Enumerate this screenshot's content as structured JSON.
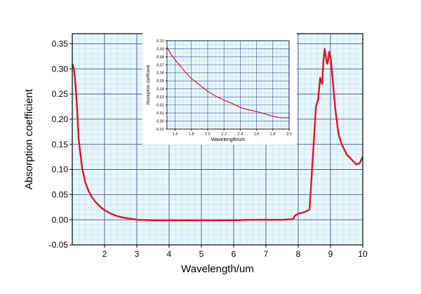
{
  "colors": {
    "background": "#e8f7fb",
    "minor_grid": "#aee0ec",
    "major_grid": "#4a4fa8",
    "curve": "#e0141c",
    "axis": "#000000"
  },
  "chart_data": [
    {
      "type": "line",
      "title": "",
      "xlabel": "Wavelength/um",
      "ylabel": "Absorption coefficient",
      "xlim": [
        1.0,
        10.0
      ],
      "ylim": [
        -0.05,
        0.37
      ],
      "grid": true,
      "x_ticks": [
        2,
        3,
        4,
        5,
        6,
        7,
        8,
        9,
        10
      ],
      "x_tick_labels": [
        "2",
        "3",
        "4",
        "5",
        "6",
        "7",
        "8",
        "9",
        "10"
      ],
      "y_ticks": [
        -0.05,
        0.0,
        0.05,
        0.1,
        0.15,
        0.2,
        0.25,
        0.3,
        0.35
      ],
      "y_tick_labels": [
        "-0.05",
        "0.00",
        "0.05",
        "0.10",
        "0.15",
        "0.20",
        "0.25",
        "0.30",
        "0.35"
      ],
      "series": [
        {
          "name": "Absorption coefficient",
          "x": [
            1.0,
            1.05,
            1.1,
            1.15,
            1.2,
            1.3,
            1.4,
            1.5,
            1.6,
            1.7,
            1.8,
            1.9,
            2.0,
            2.2,
            2.4,
            2.6,
            2.8,
            3.0,
            3.5,
            4.0,
            4.5,
            5.0,
            5.5,
            6.0,
            6.5,
            7.0,
            7.5,
            7.8,
            7.85,
            7.9,
            8.0,
            8.2,
            8.35,
            8.45,
            8.55,
            8.62,
            8.68,
            8.74,
            8.78,
            8.82,
            8.86,
            8.9,
            8.93,
            8.96,
            9.0,
            9.04,
            9.08,
            9.15,
            9.25,
            9.35,
            9.5,
            9.65,
            9.8,
            9.9,
            10.0
          ],
          "y": [
            0.31,
            0.3,
            0.27,
            0.22,
            0.16,
            0.105,
            0.075,
            0.058,
            0.046,
            0.037,
            0.03,
            0.024,
            0.019,
            0.012,
            0.007,
            0.004,
            0.002,
            0.0,
            -0.001,
            -0.001,
            -0.001,
            -0.001,
            -0.001,
            -0.001,
            0.0,
            0.0,
            0.0,
            0.001,
            0.002,
            0.008,
            0.012,
            0.015,
            0.02,
            0.12,
            0.225,
            0.24,
            0.282,
            0.27,
            0.315,
            0.34,
            0.322,
            0.31,
            0.318,
            0.334,
            0.325,
            0.3,
            0.27,
            0.22,
            0.17,
            0.15,
            0.13,
            0.12,
            0.11,
            0.112,
            0.125
          ]
        }
      ]
    },
    {
      "type": "line",
      "title": "",
      "xlabel": "Wavelength/um",
      "ylabel": "Absorption coefficient",
      "xlim": [
        1.5,
        3.0
      ],
      "ylim": [
        -0.01,
        0.1
      ],
      "grid": true,
      "x_ticks": [
        1.6,
        1.8,
        2.0,
        2.2,
        2.4,
        2.6,
        2.8,
        3.0
      ],
      "x_tick_labels": [
        "1.6",
        "1.8",
        "2.0",
        "2.2",
        "2.4",
        "2.6",
        "2.8",
        "3.0"
      ],
      "y_ticks": [
        -0.01,
        0.0,
        0.01,
        0.02,
        0.03,
        0.04,
        0.05,
        0.06,
        0.07,
        0.08,
        0.09,
        0.1
      ],
      "y_tick_labels": [
        "-0.01",
        "0.00",
        "0.01",
        "0.02",
        "0.03",
        "0.04",
        "0.05",
        "0.06",
        "0.07",
        "0.08",
        "0.09",
        "0.10"
      ],
      "series": [
        {
          "name": "Absorption coefficient",
          "x": [
            1.5,
            1.55,
            1.6,
            1.7,
            1.8,
            1.9,
            2.0,
            2.1,
            2.2,
            2.3,
            2.4,
            2.5,
            2.6,
            2.7,
            2.8,
            2.9,
            3.0
          ],
          "y": [
            0.092,
            0.083,
            0.076,
            0.064,
            0.053,
            0.045,
            0.037,
            0.031,
            0.026,
            0.022,
            0.017,
            0.014,
            0.012,
            0.009,
            0.006,
            0.004,
            0.004
          ]
        }
      ]
    }
  ]
}
